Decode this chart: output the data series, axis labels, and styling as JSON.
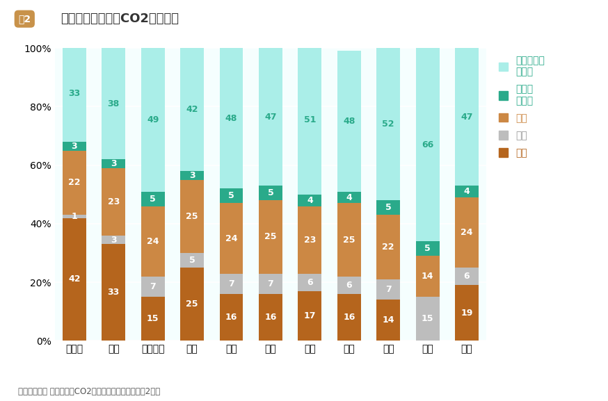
{
  "categories": [
    "北海道",
    "東北",
    "関東甲信",
    "北陸",
    "東海",
    "近畿",
    "中国",
    "四国",
    "九州",
    "沖縄",
    "全国"
  ],
  "series": {
    "暖房": [
      42,
      33,
      15,
      25,
      16,
      16,
      17,
      16,
      14,
      0,
      19
    ],
    "冷房": [
      1,
      3,
      7,
      5,
      7,
      7,
      6,
      6,
      7,
      15,
      6
    ],
    "給湯": [
      22,
      23,
      24,
      25,
      24,
      25,
      23,
      25,
      22,
      14,
      24
    ],
    "台所用コンロ": [
      3,
      3,
      5,
      3,
      5,
      5,
      4,
      4,
      5,
      5,
      4
    ],
    "照明・家電製品等": [
      33,
      38,
      49,
      42,
      48,
      47,
      51,
      48,
      52,
      66,
      47
    ]
  },
  "colors": {
    "暖房": "#b5651d",
    "冷房": "#bdbdbd",
    "給湯": "#cc8844",
    "台所用コンロ": "#2aaa8a",
    "照明・家電製品等": "#aaeee8"
  },
  "order": [
    "暖房",
    "冷房",
    "給湯",
    "台所用コンロ",
    "照明・家電製品等"
  ],
  "title": "家庭部門の用途別CO2排出割合",
  "fig_label": "図2",
  "source_text": "出典：環境省 家庭部門のCO2排出実態統計調査（令和2年）",
  "legend_labels": [
    "照明・家電\n製品等",
    "台所用\nコンロ",
    "給湯",
    "冷房",
    "暖房"
  ],
  "legend_keys": [
    "照明・家電製品等",
    "台所用コンロ",
    "給湯",
    "冷房",
    "暖房"
  ],
  "bar_width": 0.6,
  "background_color": "#ffffff",
  "title_box_color": "#c8924a",
  "plot_bg_color": "#f5fefe"
}
